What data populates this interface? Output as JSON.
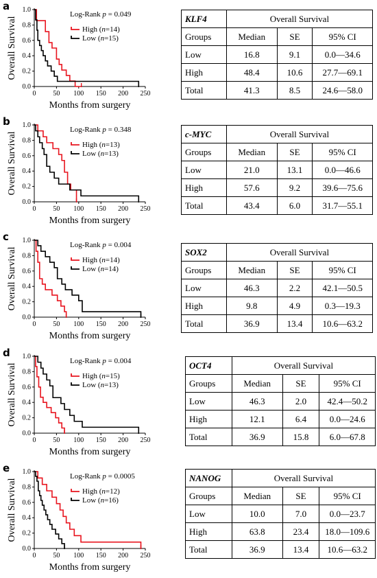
{
  "chart_data": [
    {
      "type": "line",
      "panel_label": "a",
      "xlabel": "Months from surgery",
      "ylabel": "Overall Survival",
      "xlim": [
        0,
        250
      ],
      "ylim": [
        0,
        1
      ],
      "xticks": [
        "0",
        "50",
        "100",
        "150",
        "200",
        "250"
      ],
      "yticks": [
        "0.0",
        "0.2",
        "0.4",
        "0.6",
        "0.8",
        "1.0"
      ],
      "annotation": "Log-Rank p = 0.049",
      "legend_position": "top-center",
      "series": [
        {
          "name": "High (n=14)",
          "color": "#e8141e",
          "x": [
            0,
            5,
            25,
            33,
            40,
            50,
            56,
            62,
            72,
            80,
            92,
            106
          ],
          "y": [
            1.0,
            0.857,
            0.714,
            0.571,
            0.5,
            0.357,
            0.286,
            0.214,
            0.143,
            0.071,
            0.0,
            0.0
          ]
        },
        {
          "name": "Low (n=15)",
          "color": "#000000",
          "x": [
            0,
            3,
            6,
            8,
            12,
            16,
            20,
            25,
            30,
            38,
            45,
            52,
            62,
            80,
            235
          ],
          "y": [
            1.0,
            0.867,
            0.733,
            0.6,
            0.533,
            0.467,
            0.4,
            0.333,
            0.267,
            0.2,
            0.133,
            0.067,
            0.067,
            0.067,
            0.0
          ]
        }
      ]
    },
    {
      "type": "line",
      "panel_label": "b",
      "xlabel": "Months from surgery",
      "ylabel": "Overall Survival",
      "xlim": [
        0,
        250
      ],
      "ylim": [
        0,
        1
      ],
      "xticks": [
        "0",
        "50",
        "100",
        "150",
        "200",
        "250"
      ],
      "yticks": [
        "0.0",
        "0.2",
        "0.4",
        "0.6",
        "0.8",
        "1.0"
      ],
      "annotation": "Log-Rank p = 0.348",
      "legend_position": "top-center",
      "series": [
        {
          "name": "High (n=13)",
          "color": "#e8141e",
          "x": [
            0,
            8,
            20,
            28,
            42,
            55,
            62,
            68,
            75,
            82,
            95
          ],
          "y": [
            1.0,
            0.923,
            0.846,
            0.769,
            0.692,
            0.615,
            0.538,
            0.385,
            0.231,
            0.154,
            0.0
          ]
        },
        {
          "name": "Low (n=13)",
          "color": "#000000",
          "x": [
            0,
            3,
            8,
            12,
            18,
            22,
            28,
            35,
            45,
            55,
            80,
            105,
            235
          ],
          "y": [
            1.0,
            0.923,
            0.846,
            0.769,
            0.692,
            0.615,
            0.462,
            0.385,
            0.308,
            0.231,
            0.154,
            0.077,
            0.0
          ]
        }
      ]
    },
    {
      "type": "line",
      "panel_label": "c",
      "xlabel": "Months from surgery",
      "ylabel": "Overall Survival",
      "xlim": [
        0,
        250
      ],
      "ylim": [
        0,
        1
      ],
      "xticks": [
        "0",
        "50",
        "100",
        "150",
        "200",
        "250"
      ],
      "yticks": [
        "0.0",
        "0.2",
        "0.4",
        "0.6",
        "0.8",
        "1.0"
      ],
      "annotation": "Log-Rank p = 0.004",
      "legend_position": "top-center",
      "series": [
        {
          "name": "High (n=14)",
          "color": "#e8141e",
          "x": [
            0,
            4,
            8,
            12,
            18,
            25,
            40,
            52,
            60,
            68,
            72
          ],
          "y": [
            1.0,
            0.857,
            0.714,
            0.5,
            0.429,
            0.357,
            0.286,
            0.214,
            0.143,
            0.071,
            0.0
          ]
        },
        {
          "name": "Low (n=14)",
          "color": "#000000",
          "x": [
            0,
            8,
            15,
            25,
            35,
            45,
            52,
            62,
            70,
            85,
            100,
            108,
            240
          ],
          "y": [
            1.0,
            0.929,
            0.857,
            0.786,
            0.714,
            0.643,
            0.5,
            0.429,
            0.357,
            0.286,
            0.214,
            0.071,
            0.0
          ]
        }
      ]
    },
    {
      "type": "line",
      "panel_label": "d",
      "xlabel": "Months from surgery",
      "ylabel": "Overall Survival",
      "xlim": [
        0,
        250
      ],
      "ylim": [
        0,
        1
      ],
      "xticks": [
        "0",
        "50",
        "100",
        "150",
        "200",
        "250"
      ],
      "yticks": [
        "0.0",
        "0.2",
        "0.4",
        "0.6",
        "0.8",
        "1.0"
      ],
      "annotation": "Log-Rank p = 0.004",
      "legend_position": "top-center",
      "series": [
        {
          "name": "High (n=15)",
          "color": "#e8141e",
          "x": [
            0,
            3,
            6,
            10,
            14,
            20,
            28,
            38,
            48,
            55,
            62,
            68
          ],
          "y": [
            1.0,
            0.867,
            0.733,
            0.6,
            0.467,
            0.4,
            0.333,
            0.267,
            0.2,
            0.133,
            0.067,
            0.0
          ]
        },
        {
          "name": "Low (n=13)",
          "color": "#000000",
          "x": [
            0,
            8,
            15,
            20,
            28,
            35,
            42,
            60,
            68,
            80,
            90,
            108,
            235
          ],
          "y": [
            1.0,
            0.923,
            0.846,
            0.769,
            0.692,
            0.615,
            0.462,
            0.385,
            0.308,
            0.231,
            0.154,
            0.077,
            0.0
          ]
        }
      ]
    },
    {
      "type": "line",
      "panel_label": "e",
      "xlabel": "Months from surgery",
      "ylabel": "Overall Survival",
      "xlim": [
        0,
        250
      ],
      "ylim": [
        0,
        1
      ],
      "xticks": [
        "0",
        "50",
        "100",
        "150",
        "200",
        "250"
      ],
      "yticks": [
        "0.0",
        "0.2",
        "0.4",
        "0.6",
        "0.8",
        "1.0"
      ],
      "annotation": "Log-Rank p = 0.0005",
      "legend_position": "top-center",
      "series": [
        {
          "name": "High (n=12)",
          "color": "#e8141e",
          "x": [
            0,
            8,
            18,
            28,
            40,
            50,
            58,
            65,
            72,
            80,
            90,
            105,
            240
          ],
          "y": [
            1.0,
            0.917,
            0.833,
            0.75,
            0.667,
            0.583,
            0.5,
            0.417,
            0.333,
            0.25,
            0.167,
            0.083,
            0.0
          ]
        },
        {
          "name": "Low (n=16)",
          "color": "#000000",
          "x": [
            0,
            3,
            6,
            9,
            12,
            15,
            18,
            22,
            26,
            30,
            35,
            40,
            48,
            55,
            62,
            68
          ],
          "y": [
            1.0,
            0.938,
            0.875,
            0.75,
            0.688,
            0.625,
            0.563,
            0.5,
            0.438,
            0.375,
            0.313,
            0.25,
            0.188,
            0.125,
            0.063,
            0.0
          ]
        }
      ]
    }
  ],
  "tables": [
    {
      "gene": "KLF4",
      "group_header": "Overall Survival",
      "columns": [
        "Groups",
        "Median",
        "SE",
        "95% CI"
      ],
      "rows": [
        [
          "Low",
          "16.8",
          "9.1",
          "0.0—34.6"
        ],
        [
          "High",
          "48.4",
          "10.6",
          "27.7—69.1"
        ],
        [
          "Total",
          "41.3",
          "8.5",
          "24.6—58.0"
        ]
      ]
    },
    {
      "gene": "c-MYC",
      "group_header": "Overall Survival",
      "columns": [
        "Groups",
        "Median",
        "SE",
        "95% CI"
      ],
      "rows": [
        [
          "Low",
          "21.0",
          "13.1",
          "0.0—46.6"
        ],
        [
          "High",
          "57.6",
          "9.2",
          "39.6—75.6"
        ],
        [
          "Total",
          "43.4",
          "6.0",
          "31.7—55.1"
        ]
      ]
    },
    {
      "gene": "SOX2",
      "group_header": "Overall Survival",
      "columns": [
        "Groups",
        "Median",
        "SE",
        "95% CI"
      ],
      "rows": [
        [
          "Low",
          "46.3",
          "2.2",
          "42.1—50.5"
        ],
        [
          "High",
          "9.8",
          "4.9",
          "0.3—19.3"
        ],
        [
          "Total",
          "36.9",
          "13.4",
          "10.6—63.2"
        ]
      ]
    },
    {
      "gene": "OCT4",
      "group_header": "Overall Survival",
      "columns": [
        "Groups",
        "Median",
        "SE",
        "95% CI"
      ],
      "rows": [
        [
          "Low",
          "46.3",
          "2.0",
          "42.4—50.2"
        ],
        [
          "High",
          "12.1",
          "6.4",
          "0.0—24.6"
        ],
        [
          "Total",
          "36.9",
          "15.8",
          "6.0—67.8"
        ]
      ]
    },
    {
      "gene": "NANOG",
      "group_header": "Overall Survival",
      "columns": [
        "Groups",
        "Median",
        "SE",
        "95% CI"
      ],
      "rows": [
        [
          "Low",
          "10.0",
          "7.0",
          "0.0—23.7"
        ],
        [
          "High",
          "63.8",
          "23.4",
          "18.0—109.6"
        ],
        [
          "Total",
          "36.9",
          "13.4",
          "10.6—63.2"
        ]
      ]
    }
  ]
}
